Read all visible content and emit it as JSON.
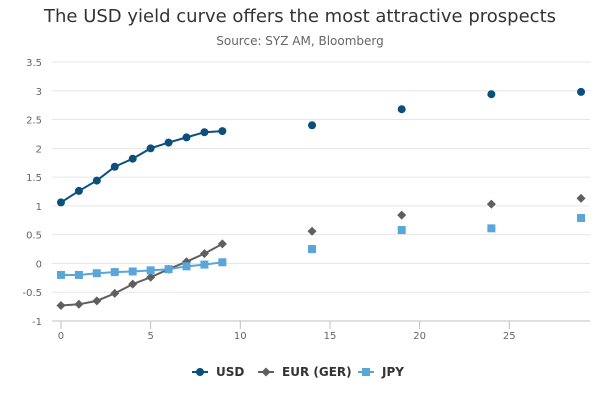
{
  "chart_data": {
    "type": "line",
    "title": "The USD yield curve offers the most attractive prospects",
    "subtitle": "Source: SYZ AM, Bloomberg",
    "xlabel": "",
    "ylabel": "",
    "xlim": [
      -0.5,
      29.5
    ],
    "ylim": [
      -1,
      3.5
    ],
    "x_ticks": [
      0,
      5,
      10,
      15,
      20,
      25
    ],
    "y_ticks": [
      -1,
      -0.5,
      0,
      0.5,
      1,
      1.5,
      2,
      2.5,
      3,
      3.5
    ],
    "grid": "horizontal",
    "legend_position": "bottom",
    "series": [
      {
        "name": "USD",
        "color": "#0b4f7d",
        "marker": "circle",
        "line_points": 10,
        "x": [
          0,
          1,
          2,
          3,
          4,
          5,
          6,
          7,
          8,
          9,
          14,
          19,
          24,
          29
        ],
        "values": [
          1.06,
          1.26,
          1.44,
          1.68,
          1.82,
          2.0,
          2.1,
          2.19,
          2.28,
          2.3,
          2.4,
          2.68,
          2.94,
          2.98
        ]
      },
      {
        "name": "EUR (GER)",
        "color": "#5f5f5f",
        "marker": "diamond",
        "line_points": 10,
        "x": [
          0,
          1,
          2,
          3,
          4,
          5,
          6,
          7,
          8,
          9,
          14,
          19,
          24,
          29
        ],
        "values": [
          -0.73,
          -0.71,
          -0.65,
          -0.52,
          -0.36,
          -0.24,
          -0.1,
          0.03,
          0.17,
          0.34,
          0.56,
          0.84,
          1.03,
          1.13
        ]
      },
      {
        "name": "JPY",
        "color": "#5aa6d8",
        "marker": "square",
        "line_points": 10,
        "x": [
          0,
          1,
          2,
          3,
          4,
          5,
          6,
          7,
          8,
          9,
          14,
          19,
          24,
          29
        ],
        "values": [
          -0.2,
          -0.2,
          -0.17,
          -0.15,
          -0.14,
          -0.12,
          -0.1,
          -0.05,
          -0.02,
          0.02,
          0.25,
          0.58,
          0.61,
          0.79
        ]
      }
    ]
  }
}
